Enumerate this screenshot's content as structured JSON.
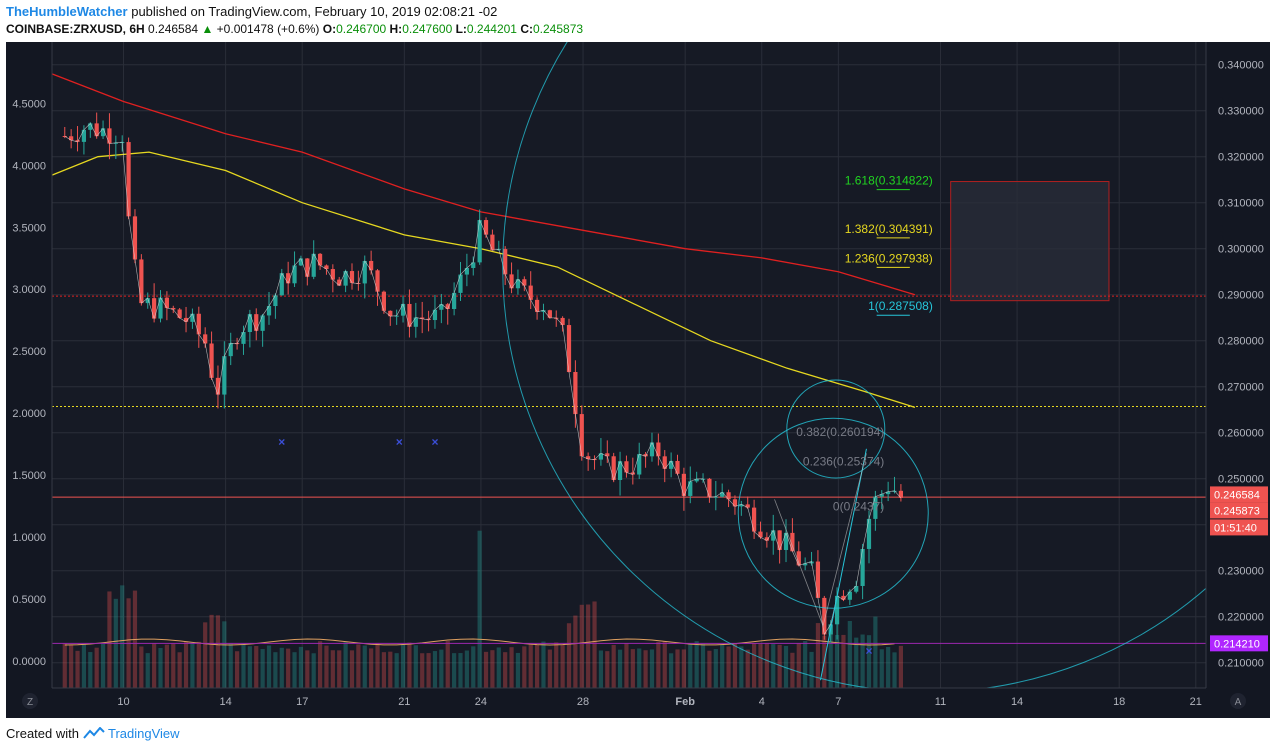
{
  "header": {
    "user": "TheHumbleWatcher",
    "published_text": "published on TradingView.com, February 10, 2019 02:08:21 -02",
    "symbol": "COINBASE:ZRXUSD, 6H",
    "last": "0.246584",
    "change_arrow": "▲",
    "change": "+0.001478 (+0.6%)",
    "open_label": "O:",
    "open": "0.246700",
    "high_label": "H:",
    "high": "0.247600",
    "low_label": "L:",
    "low": "0.244201",
    "close_label": "C:",
    "close": "0.245873"
  },
  "footer": {
    "created_with": "Created with",
    "brand": "TradingView"
  },
  "colors": {
    "background": "#131722",
    "grid": "#2a2e39",
    "bull": "#26a69a",
    "bear": "#ef5350",
    "sma_red": "#e02020",
    "sma_yellow": "#e6d820",
    "cyan": "#26c6da",
    "fib_green": "#21d421",
    "fib_yellow": "#e6d820",
    "purple": "#9c27b0"
  },
  "chart_data": {
    "type": "candlestick",
    "x_ticks": [
      "10",
      "14",
      "17",
      "21",
      "24",
      "28",
      "Feb",
      "4",
      "7",
      "11",
      "14",
      "18",
      "21"
    ],
    "x_tick_days": [
      10,
      14,
      17,
      21,
      24,
      28,
      32,
      35,
      38,
      42,
      45,
      49,
      52
    ],
    "x_range_days": [
      7.2,
      52.4
    ],
    "y_right_ticks": [
      "0.340000",
      "0.330000",
      "0.320000",
      "0.310000",
      "0.300000",
      "0.290000",
      "0.280000",
      "0.270000",
      "0.260000",
      "0.250000",
      "0.240000",
      "0.230000",
      "0.220000",
      "0.210000"
    ],
    "y_right_range": [
      0.2045,
      0.3445
    ],
    "y_left_ticks": [
      "4.5000",
      "4.0000",
      "3.5000",
      "3.0000",
      "2.5000",
      "2.0000",
      "1.5000",
      "1.0000",
      "0.5000",
      "0.0000"
    ],
    "y_left_range": [
      -0.22,
      4.98
    ],
    "price_labels": [
      {
        "text": "0.246584",
        "value": 0.246584,
        "color": "#ef5350"
      },
      {
        "text": "0.245873",
        "value": 0.245873,
        "color": "#ef5350"
      },
      {
        "text": "01:51:40",
        "value": 0.242,
        "color": "#ef5350"
      },
      {
        "text": "0.214210",
        "value": 0.21421,
        "color": "#b026ff"
      }
    ],
    "countdown": "01:51:40",
    "corner_left": "Z",
    "corner_right": "A",
    "series_price": [
      {
        "day": 7.7,
        "value": 0.3245
      },
      {
        "day": 8.5,
        "value": 0.3265
      },
      {
        "day": 9.5,
        "value": 0.3255
      },
      {
        "day": 10.0,
        "value": 0.325
      },
      {
        "day": 10.2,
        "value": 0.306
      },
      {
        "day": 10.6,
        "value": 0.288
      },
      {
        "day": 11.5,
        "value": 0.287
      },
      {
        "day": 12.5,
        "value": 0.2845
      },
      {
        "day": 13.3,
        "value": 0.279
      },
      {
        "day": 13.6,
        "value": 0.268
      },
      {
        "day": 14.5,
        "value": 0.283
      },
      {
        "day": 15.5,
        "value": 0.286
      },
      {
        "day": 16.5,
        "value": 0.295
      },
      {
        "day": 17.5,
        "value": 0.297
      },
      {
        "day": 18.5,
        "value": 0.294
      },
      {
        "day": 19.5,
        "value": 0.296
      },
      {
        "day": 20.5,
        "value": 0.286
      },
      {
        "day": 21.5,
        "value": 0.285
      },
      {
        "day": 22.5,
        "value": 0.285
      },
      {
        "day": 23.3,
        "value": 0.294
      },
      {
        "day": 24.0,
        "value": 0.304
      },
      {
        "day": 24.6,
        "value": 0.298
      },
      {
        "day": 25.5,
        "value": 0.2905
      },
      {
        "day": 26.5,
        "value": 0.288
      },
      {
        "day": 27.3,
        "value": 0.28
      },
      {
        "day": 28.0,
        "value": 0.256
      },
      {
        "day": 29.0,
        "value": 0.252
      },
      {
        "day": 30.0,
        "value": 0.253
      },
      {
        "day": 31.0,
        "value": 0.256
      },
      {
        "day": 32.0,
        "value": 0.248
      },
      {
        "day": 33.0,
        "value": 0.2475
      },
      {
        "day": 34.0,
        "value": 0.245
      },
      {
        "day": 35.0,
        "value": 0.24
      },
      {
        "day": 36.0,
        "value": 0.235
      },
      {
        "day": 37.0,
        "value": 0.229
      },
      {
        "day": 37.4,
        "value": 0.217
      },
      {
        "day": 38.0,
        "value": 0.225
      },
      {
        "day": 38.7,
        "value": 0.229
      },
      {
        "day": 39.3,
        "value": 0.244
      },
      {
        "day": 40.0,
        "value": 0.249
      },
      {
        "day": 40.5,
        "value": 0.2455
      }
    ],
    "series_sma_red": [
      {
        "day": 7.2,
        "value": 0.338
      },
      {
        "day": 10,
        "value": 0.332
      },
      {
        "day": 14,
        "value": 0.325
      },
      {
        "day": 17,
        "value": 0.321
      },
      {
        "day": 21,
        "value": 0.313
      },
      {
        "day": 24,
        "value": 0.308
      },
      {
        "day": 28,
        "value": 0.304
      },
      {
        "day": 32,
        "value": 0.3
      },
      {
        "day": 35,
        "value": 0.298
      },
      {
        "day": 38,
        "value": 0.295
      },
      {
        "day": 41,
        "value": 0.29
      }
    ],
    "series_sma_yellow": [
      {
        "day": 7.2,
        "value": 0.316
      },
      {
        "day": 9,
        "value": 0.32
      },
      {
        "day": 11,
        "value": 0.321
      },
      {
        "day": 14,
        "value": 0.317
      },
      {
        "day": 17,
        "value": 0.31
      },
      {
        "day": 21,
        "value": 0.303
      },
      {
        "day": 24,
        "value": 0.3
      },
      {
        "day": 27,
        "value": 0.296
      },
      {
        "day": 30,
        "value": 0.288
      },
      {
        "day": 33,
        "value": 0.28
      },
      {
        "day": 36,
        "value": 0.274
      },
      {
        "day": 39,
        "value": 0.269
      },
      {
        "day": 41,
        "value": 0.2655
      }
    ],
    "horizontal_lines": [
      {
        "name": "red-dotted-resistance",
        "value": 0.2897,
        "color": "#e02020"
      },
      {
        "name": "yellow-dotted-support",
        "value": 0.2657,
        "color": "#e6d820"
      },
      {
        "name": "price-line",
        "value": 0.246,
        "color": "#ef5350"
      },
      {
        "name": "purple-line",
        "value": 0.21421,
        "color": "#9c27b0"
      }
    ],
    "fib_levels": [
      {
        "label": "1.618(0.314822)",
        "value": 0.3148,
        "color": "#21d421"
      },
      {
        "label": "1.382(0.304391)",
        "value": 0.3043,
        "color": "#e6d820"
      },
      {
        "label": "1.236(0.297938)",
        "value": 0.2979,
        "color": "#e6d820"
      },
      {
        "label": "1(0.287508)",
        "value": 0.2875,
        "color": "#26c6da"
      },
      {
        "label": "0.382(0.260194)",
        "value": 0.2602,
        "color": "#787b86"
      },
      {
        "label": "0.236(0.25374)",
        "value": 0.2537,
        "color": "#787b86"
      },
      {
        "label": "0(0.2437)",
        "value": 0.244,
        "color": "#787b86"
      }
    ],
    "target_zone": {
      "day_start": 42.4,
      "day_end": 48.6,
      "value_low": 0.2887,
      "value_high": 0.3146
    },
    "x_markers": [
      {
        "day": 16.2,
        "value": 0.258
      },
      {
        "day": 20.8,
        "value": 0.258
      },
      {
        "day": 22.2,
        "value": 0.258
      },
      {
        "day": 39.2,
        "value": 0.2125
      }
    ],
    "volume_avg_value": 0.2145
  }
}
